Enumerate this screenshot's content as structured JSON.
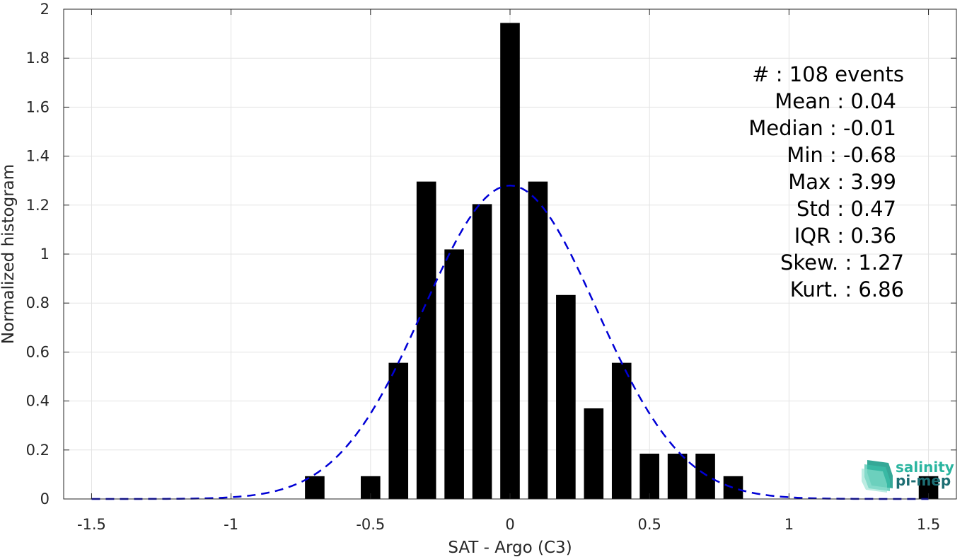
{
  "chart_data": {
    "type": "bar",
    "xlabel": "SAT - Argo (C3)",
    "ylabel": "Normalized histogram",
    "xlim": [
      -1.6,
      1.6
    ],
    "ylim": [
      0,
      2
    ],
    "xticks": [
      -1.5,
      -1,
      -0.5,
      0,
      0.5,
      1,
      1.5
    ],
    "xtick_labels": [
      "-1.5",
      "-1",
      "-0.5",
      "0",
      "0.5",
      "1",
      "1.5"
    ],
    "yticks": [
      0,
      0.2,
      0.4,
      0.6,
      0.8,
      1,
      1.2,
      1.4,
      1.6,
      1.8,
      2
    ],
    "ytick_labels": [
      "0",
      "0.2",
      "0.4",
      "0.6",
      "0.8",
      "1",
      "1.2",
      "1.4",
      "1.6",
      "1.8",
      "2"
    ],
    "grid": true,
    "bin_width": 0.1,
    "bar_width": 0.07,
    "bars": [
      {
        "x": -0.7,
        "y": 0.093
      },
      {
        "x": -0.5,
        "y": 0.093
      },
      {
        "x": -0.4,
        "y": 0.556
      },
      {
        "x": -0.3,
        "y": 1.296
      },
      {
        "x": -0.2,
        "y": 1.019
      },
      {
        "x": -0.1,
        "y": 1.204
      },
      {
        "x": 0.0,
        "y": 1.944
      },
      {
        "x": 0.1,
        "y": 1.296
      },
      {
        "x": 0.2,
        "y": 0.833
      },
      {
        "x": 0.3,
        "y": 0.37
      },
      {
        "x": 0.4,
        "y": 0.556
      },
      {
        "x": 0.5,
        "y": 0.185
      },
      {
        "x": 0.6,
        "y": 0.185
      },
      {
        "x": 0.7,
        "y": 0.185
      },
      {
        "x": 0.8,
        "y": 0.093
      },
      {
        "x": 1.5,
        "y": 0.093
      }
    ],
    "bar_color": "#000000",
    "fit": {
      "type": "gaussian",
      "mean": 0.0,
      "std": 0.31,
      "peak": 1.28,
      "x_range": [
        -1.5,
        1.5
      ],
      "color": "#0000d6",
      "style": "dashed"
    },
    "stats": [
      "#  : 108 events",
      "Mean : 0.04",
      "Median : -0.01",
      "Min : -0.68",
      "Max : 3.99",
      "Std : 0.47",
      "IQR : 0.36",
      "Skew. : 1.27",
      "Kurt. : 6.86"
    ]
  },
  "logo": {
    "line1": "salinity",
    "line2": "pi-mep",
    "color1": "#2bb5a0",
    "color2": "#1d6e73"
  }
}
